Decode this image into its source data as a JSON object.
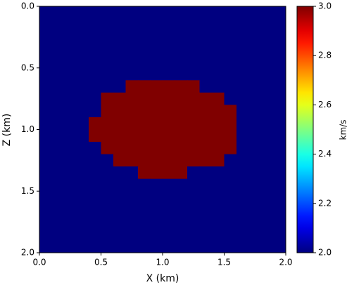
{
  "chart_data": {
    "type": "heatmap",
    "xlabel": "X (km)",
    "ylabel": "Z (km)",
    "colorbar_label": "km/s",
    "colormap": "jet",
    "y_inverted": true,
    "xlim": [
      0,
      2
    ],
    "ylim": [
      0,
      2
    ],
    "clim": [
      2,
      3
    ],
    "xticks": [
      {
        "value": 0,
        "label": "0.0"
      },
      0.5,
      {
        "value": 1,
        "label": "1.0"
      },
      1.5,
      {
        "value": 2,
        "label": "2.0"
      }
    ],
    "yticks": [
      {
        "value": 0,
        "label": "0.0"
      },
      0.5,
      {
        "value": 1,
        "label": "1.0"
      },
      1.5,
      {
        "value": 2,
        "label": "2.0"
      }
    ],
    "cticks": [
      {
        "value": 2,
        "label": "2.0"
      },
      2.2,
      2.4,
      2.6,
      2.8,
      {
        "value": 3,
        "label": "3.0"
      }
    ],
    "z": [
      [
        2,
        2,
        2,
        2,
        2,
        2,
        2,
        2,
        2,
        2,
        2,
        2,
        2,
        2,
        2,
        2,
        2,
        2,
        2,
        2
      ],
      [
        2,
        2,
        2,
        2,
        2,
        2,
        2,
        2,
        2,
        2,
        2,
        2,
        2,
        2,
        2,
        2,
        2,
        2,
        2,
        2
      ],
      [
        2,
        2,
        2,
        2,
        2,
        2,
        2,
        2,
        2,
        2,
        2,
        2,
        2,
        2,
        2,
        2,
        2,
        2,
        2,
        2
      ],
      [
        2,
        2,
        2,
        2,
        2,
        2,
        2,
        2,
        2,
        2,
        2,
        2,
        2,
        2,
        2,
        2,
        2,
        2,
        2,
        2
      ],
      [
        2,
        2,
        2,
        2,
        2,
        2,
        2,
        2,
        2,
        2,
        2,
        2,
        2,
        2,
        2,
        2,
        2,
        2,
        2,
        2
      ],
      [
        2,
        2,
        2,
        2,
        2,
        2,
        2,
        2,
        2,
        2,
        2,
        2,
        2,
        2,
        2,
        2,
        2,
        2,
        2,
        2
      ],
      [
        2,
        2,
        2,
        2,
        2,
        2,
        2,
        3,
        3,
        3,
        3,
        3,
        3,
        2,
        2,
        2,
        2,
        2,
        2,
        2
      ],
      [
        2,
        2,
        2,
        2,
        2,
        3,
        3,
        3,
        3,
        3,
        3,
        3,
        3,
        3,
        3,
        2,
        2,
        2,
        2,
        2
      ],
      [
        2,
        2,
        2,
        2,
        2,
        3,
        3,
        3,
        3,
        3,
        3,
        3,
        3,
        3,
        3,
        3,
        2,
        2,
        2,
        2
      ],
      [
        2,
        2,
        2,
        2,
        3,
        3,
        3,
        3,
        3,
        3,
        3,
        3,
        3,
        3,
        3,
        3,
        2,
        2,
        2,
        2
      ],
      [
        2,
        2,
        2,
        2,
        3,
        3,
        3,
        3,
        3,
        3,
        3,
        3,
        3,
        3,
        3,
        3,
        2,
        2,
        2,
        2
      ],
      [
        2,
        2,
        2,
        2,
        2,
        3,
        3,
        3,
        3,
        3,
        3,
        3,
        3,
        3,
        3,
        3,
        2,
        2,
        2,
        2
      ],
      [
        2,
        2,
        2,
        2,
        2,
        2,
        3,
        3,
        3,
        3,
        3,
        3,
        3,
        3,
        3,
        2,
        2,
        2,
        2,
        2
      ],
      [
        2,
        2,
        2,
        2,
        2,
        2,
        2,
        2,
        3,
        3,
        3,
        3,
        2,
        2,
        2,
        2,
        2,
        2,
        2,
        2
      ],
      [
        2,
        2,
        2,
        2,
        2,
        2,
        2,
        2,
        2,
        2,
        2,
        2,
        2,
        2,
        2,
        2,
        2,
        2,
        2,
        2
      ],
      [
        2,
        2,
        2,
        2,
        2,
        2,
        2,
        2,
        2,
        2,
        2,
        2,
        2,
        2,
        2,
        2,
        2,
        2,
        2,
        2
      ],
      [
        2,
        2,
        2,
        2,
        2,
        2,
        2,
        2,
        2,
        2,
        2,
        2,
        2,
        2,
        2,
        2,
        2,
        2,
        2,
        2
      ],
      [
        2,
        2,
        2,
        2,
        2,
        2,
        2,
        2,
        2,
        2,
        2,
        2,
        2,
        2,
        2,
        2,
        2,
        2,
        2,
        2
      ],
      [
        2,
        2,
        2,
        2,
        2,
        2,
        2,
        2,
        2,
        2,
        2,
        2,
        2,
        2,
        2,
        2,
        2,
        2,
        2,
        2
      ],
      [
        2,
        2,
        2,
        2,
        2,
        2,
        2,
        2,
        2,
        2,
        2,
        2,
        2,
        2,
        2,
        2,
        2,
        2,
        2,
        2
      ]
    ]
  }
}
